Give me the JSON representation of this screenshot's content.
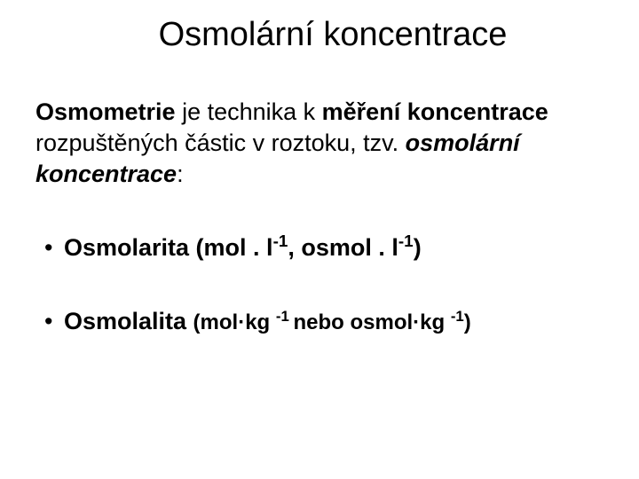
{
  "background_color": "#ffffff",
  "text_color": "#000000",
  "font_family": "Arial",
  "title": {
    "text": "Osmolární koncentrace",
    "fontsize": 38,
    "weight": "normal",
    "align": "center"
  },
  "paragraph": {
    "segments": [
      {
        "text": "Osmometrie",
        "bold": true
      },
      {
        "text": " je  technika k ",
        "bold": false
      },
      {
        "text": "měření koncentrace",
        "bold": true
      },
      {
        "text": " rozpuštěných částic v roztoku, tzv. ",
        "bold": false
      },
      {
        "text": "osmolární koncentrace",
        "bold": true,
        "italic": true
      },
      {
        "text": ":",
        "bold": false
      }
    ],
    "fontsize": 27
  },
  "bullets": [
    {
      "label_bold": "Osmolarita (mol . l",
      "sup1": "-1",
      "mid": ", osmol . l",
      "sup2": "-1",
      "end": ")"
    },
    {
      "label_bold": "Osmolalita ",
      "small_pre": "(mol·kg ",
      "small_sup1": "-1 ",
      "small_mid": "nebo osmol·kg ",
      "small_sup2": "-1",
      "small_end": ")"
    }
  ],
  "bullet_marker": "•"
}
